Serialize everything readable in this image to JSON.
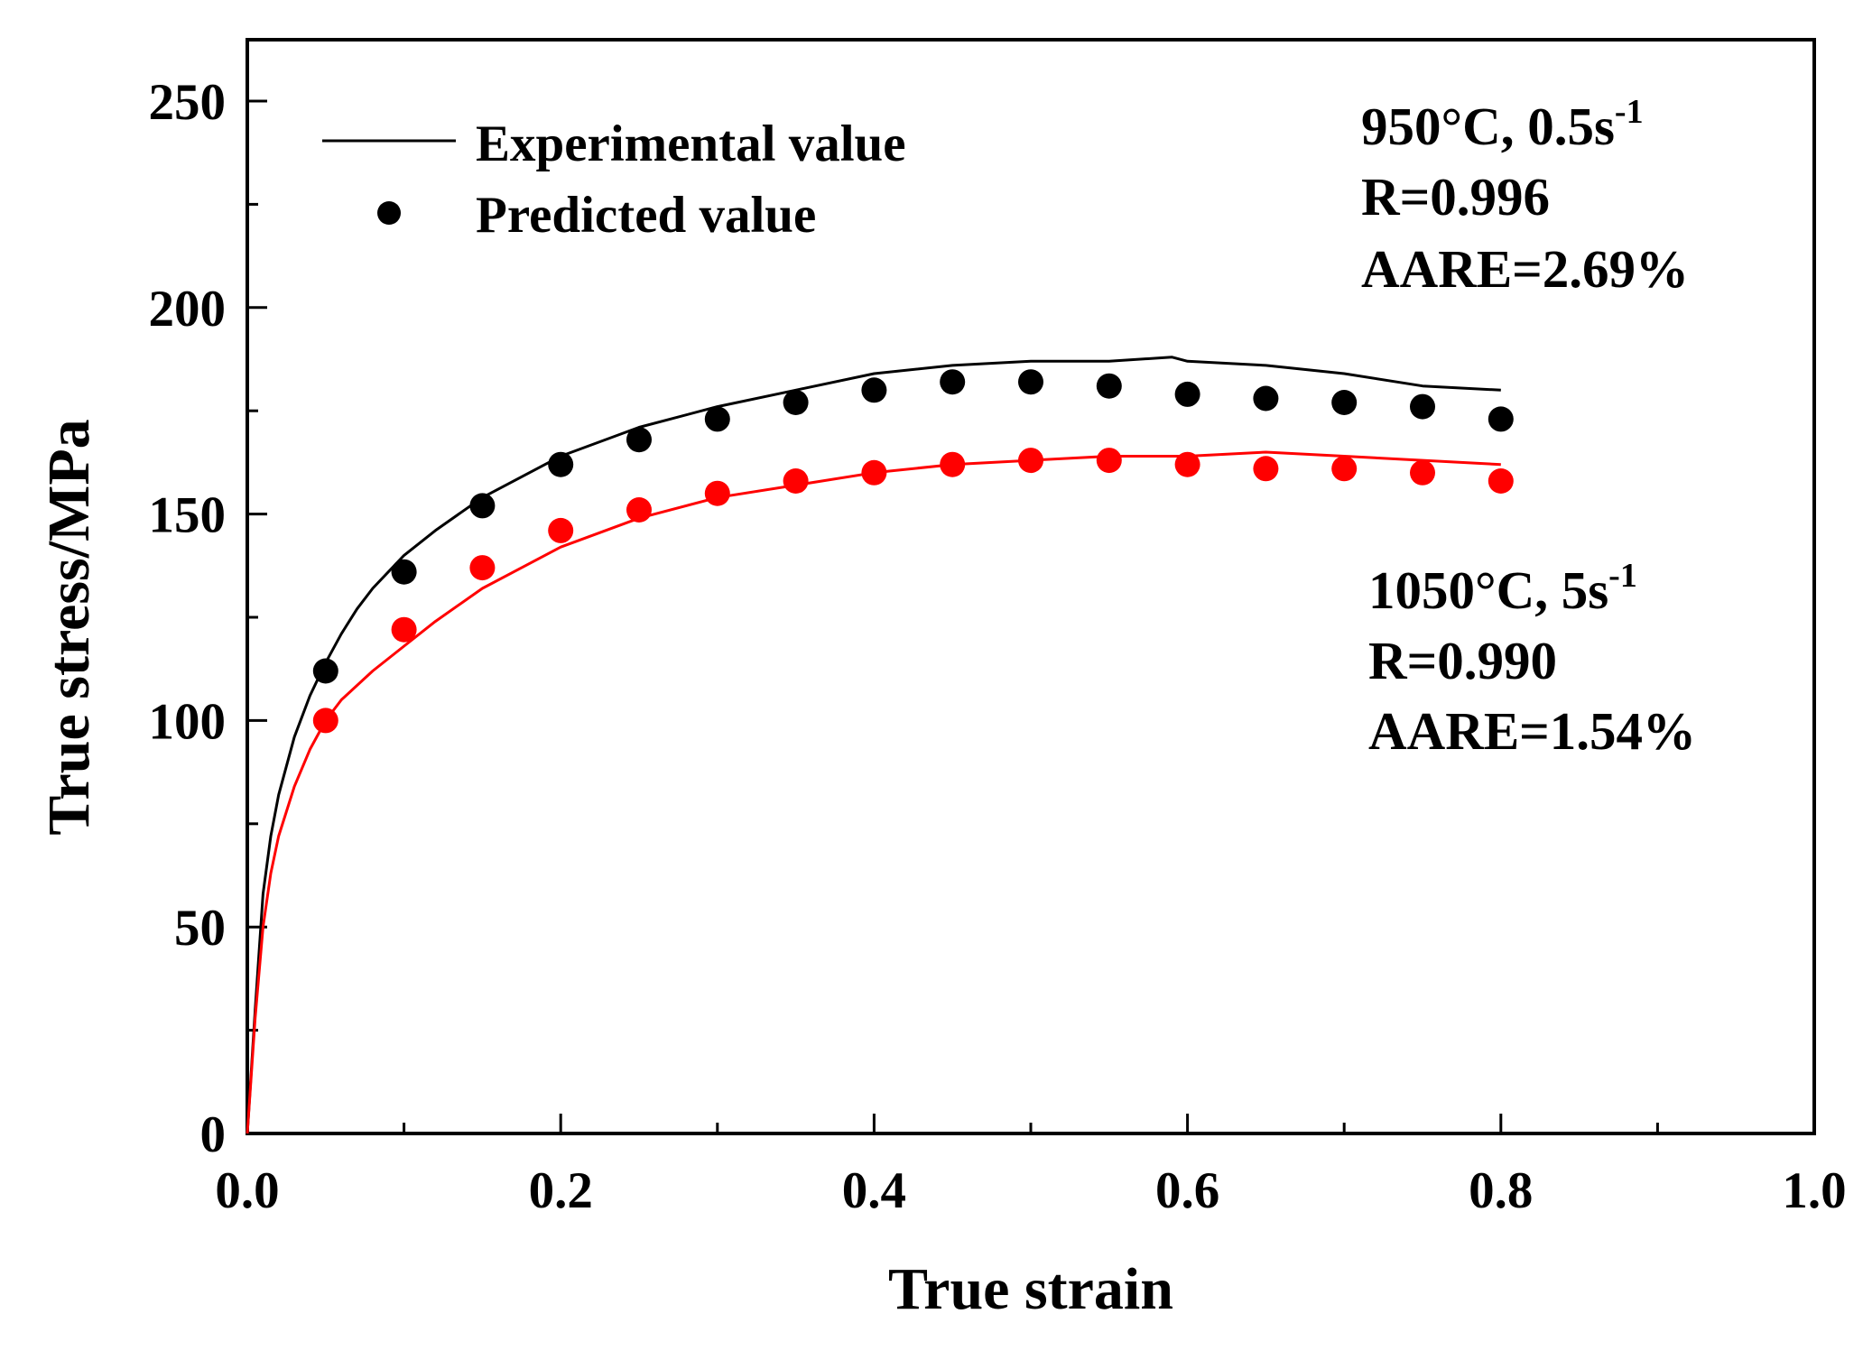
{
  "chart_data": {
    "type": "line",
    "xlabel": "True strain",
    "ylabel": "True stress/MPa",
    "xlim": [
      0.0,
      1.0
    ],
    "ylim": [
      0,
      265
    ],
    "xticks": [
      0.0,
      0.2,
      0.4,
      0.6,
      0.8,
      1.0
    ],
    "xtick_labels": [
      "0.0",
      "0.2",
      "0.4",
      "0.6",
      "0.8",
      "1.0"
    ],
    "yticks": [
      0,
      50,
      100,
      150,
      200,
      250
    ],
    "ytick_labels": [
      "0",
      "50",
      "100",
      "150",
      "200",
      "250"
    ],
    "legend": {
      "position": "top-left",
      "entries": [
        {
          "label": "Experimental value",
          "marker": "line"
        },
        {
          "label": "Predicted value",
          "marker": "circle"
        }
      ]
    },
    "series": [
      {
        "name": "950°C, 0.5s-1 Experimental value",
        "kind": "line",
        "color": "#000000",
        "x": [
          0.0,
          0.005,
          0.01,
          0.015,
          0.02,
          0.03,
          0.04,
          0.05,
          0.06,
          0.07,
          0.08,
          0.1,
          0.12,
          0.15,
          0.2,
          0.25,
          0.3,
          0.35,
          0.4,
          0.45,
          0.5,
          0.55,
          0.59,
          0.6,
          0.65,
          0.7,
          0.75,
          0.8
        ],
        "y": [
          0,
          30,
          58,
          72,
          82,
          96,
          106,
          114,
          121,
          127,
          132,
          140,
          146,
          154,
          164,
          171,
          176,
          180,
          184,
          186,
          187,
          187,
          188,
          187,
          186,
          184,
          181,
          180
        ]
      },
      {
        "name": "950°C, 0.5s-1 Predicted value",
        "kind": "scatter",
        "color": "#000000",
        "x": [
          0.05,
          0.1,
          0.15,
          0.2,
          0.25,
          0.3,
          0.35,
          0.4,
          0.45,
          0.5,
          0.55,
          0.6,
          0.65,
          0.7,
          0.75,
          0.8
        ],
        "y": [
          112,
          136,
          152,
          162,
          168,
          173,
          177,
          180,
          182,
          182,
          181,
          179,
          178,
          177,
          176,
          173
        ]
      },
      {
        "name": "1050°C, 5s-1 Experimental value",
        "kind": "line",
        "color": "#ff0000",
        "x": [
          0.0,
          0.005,
          0.01,
          0.015,
          0.02,
          0.03,
          0.04,
          0.05,
          0.06,
          0.08,
          0.1,
          0.12,
          0.15,
          0.2,
          0.25,
          0.3,
          0.35,
          0.4,
          0.45,
          0.5,
          0.55,
          0.6,
          0.65,
          0.7,
          0.75,
          0.8
        ],
        "y": [
          0,
          28,
          50,
          63,
          72,
          84,
          93,
          100,
          105,
          112,
          118,
          124,
          132,
          142,
          149,
          154,
          157,
          160,
          162,
          163,
          164,
          164,
          165,
          164,
          163,
          162
        ]
      },
      {
        "name": "1050°C, 5s-1 Predicted value",
        "kind": "scatter",
        "color": "#ff0000",
        "x": [
          0.05,
          0.1,
          0.15,
          0.2,
          0.25,
          0.3,
          0.35,
          0.4,
          0.45,
          0.5,
          0.55,
          0.6,
          0.65,
          0.7,
          0.75,
          0.8
        ],
        "y": [
          100,
          122,
          137,
          146,
          151,
          155,
          158,
          160,
          162,
          163,
          163,
          162,
          161,
          161,
          160,
          158
        ]
      }
    ],
    "annotations": [
      {
        "condition": "950°C, 0.5s",
        "superscript": "-1",
        "r": "R=0.996",
        "aare": "AARE=2.69%"
      },
      {
        "condition": "1050°C, 5s",
        "superscript": "-1",
        "r": "R=0.990",
        "aare": "AARE=1.54%"
      }
    ]
  }
}
